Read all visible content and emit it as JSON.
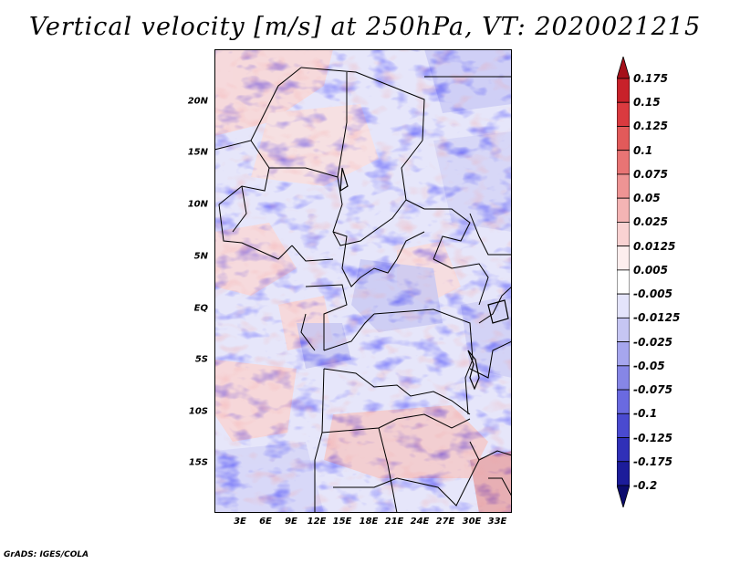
{
  "title": "Vertical velocity [m/s] at 250hPa, VT: 2020021215",
  "credit": "GrADS: IGES/COLA",
  "map": {
    "lat_labels": [
      "20N",
      "15N",
      "10N",
      "5N",
      "EQ",
      "5S",
      "10S",
      "15S"
    ],
    "lon_labels": [
      "3E",
      "6E",
      "9E",
      "12E",
      "15E",
      "18E",
      "21E",
      "24E",
      "27E",
      "30E",
      "33E"
    ]
  },
  "colorbar": {
    "levels": [
      "0.175",
      "0.15",
      "0.125",
      "0.1",
      "0.075",
      "0.05",
      "0.025",
      "0.0125",
      "0.005",
      "-0.005",
      "-0.0125",
      "-0.025",
      "-0.05",
      "-0.075",
      "-0.1",
      "-0.125",
      "-0.175",
      "-0.2"
    ],
    "colors": [
      "#a5101a",
      "#c8212a",
      "#da3a3f",
      "#e25a5a",
      "#e87474",
      "#ee9494",
      "#f4b4b4",
      "#f9d2d2",
      "#fdeeee",
      "#ffffff",
      "#e4e4fb",
      "#c6c6f3",
      "#a6a6ee",
      "#8686e6",
      "#6a6ae0",
      "#4a4ad0",
      "#3030b8",
      "#1c1c9a",
      "#0c0c6e"
    ]
  }
}
